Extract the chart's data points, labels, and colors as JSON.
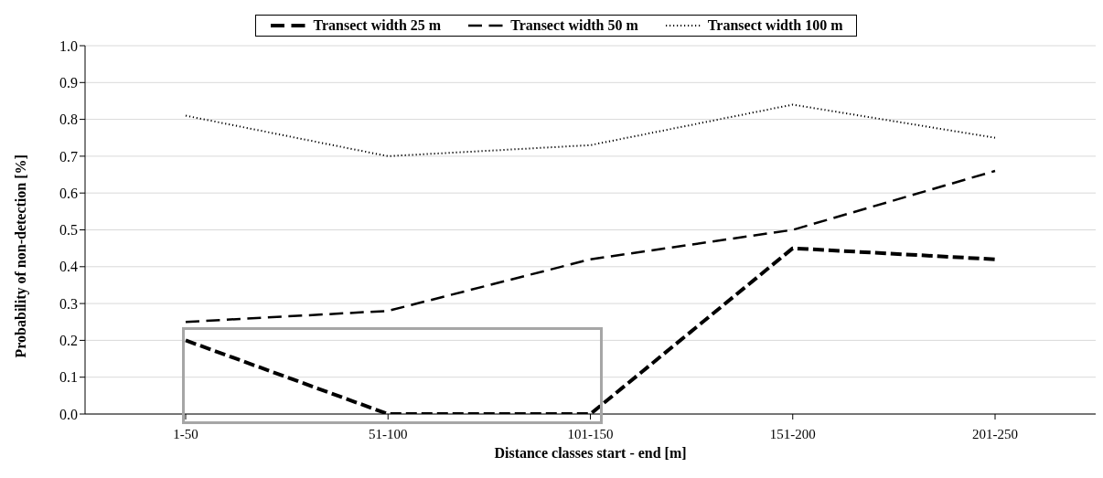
{
  "chart_data": {
    "type": "line",
    "xlabel": "Distance classes start - end [m]",
    "ylabel": "Probability of non-detection [%]",
    "categories": [
      "1-50",
      "51-100",
      "101-150",
      "151-200",
      "201-250"
    ],
    "series": [
      {
        "name": "Transect width 25 m",
        "color": "#000000",
        "line_style": "dashed",
        "values": [
          0.2,
          0,
          0,
          0.45,
          0.42
        ]
      },
      {
        "name": "Transect width 50 m",
        "color": "#000000",
        "line_style": "dashed",
        "values": [
          0.25,
          0.28,
          0.42,
          0.5,
          0.66
        ]
      },
      {
        "name": "Transect width 100 m",
        "color": "#000000",
        "line_style": "dotted",
        "values": [
          0.81,
          0.7,
          0.73,
          0.84,
          0.75
        ]
      }
    ],
    "ylim": [
      0,
      1
    ],
    "yticks": [
      {
        "value": 0,
        "label": "0.0"
      },
      0.1,
      0.2,
      0.3,
      0.4,
      0.5,
      0.6,
      0.7,
      0.8,
      0.9,
      {
        "value": 1,
        "label": "1.0"
      }
    ],
    "grid": "y",
    "legend": "top",
    "marker": "none"
  }
}
